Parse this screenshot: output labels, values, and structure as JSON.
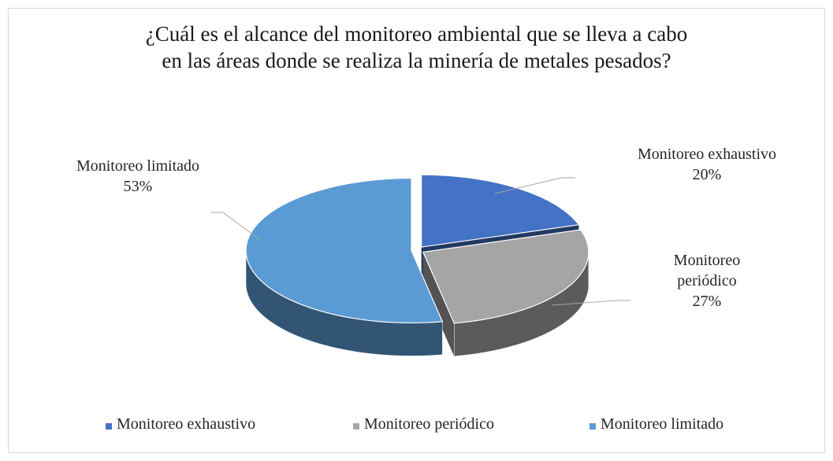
{
  "chart_data": {
    "type": "pie3d",
    "title": [
      "¿Cuál es el alcance del monitoreo ambiental que se lleva a cabo",
      "en las áreas donde se realiza la minería de metales pesados?"
    ],
    "categories": [
      "Monitoreo exhaustivo",
      "Monitoreo periódico",
      "Monitoreo limitado"
    ],
    "values": [
      20,
      27,
      53
    ],
    "value_labels": [
      "20%",
      "27%",
      "53%"
    ],
    "colors": [
      "#4472c4",
      "#a5a5a5",
      "#5b9bd5"
    ],
    "legend": "bottom"
  }
}
